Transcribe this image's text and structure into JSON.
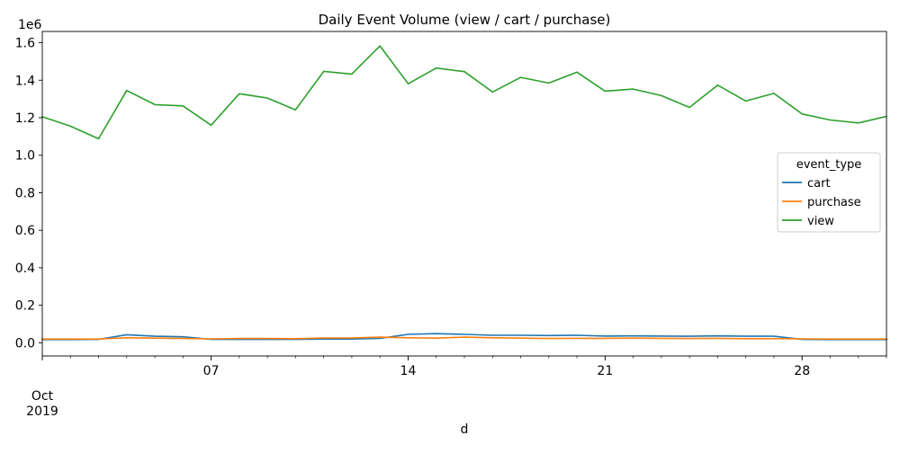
{
  "chart_data": {
    "type": "line",
    "title": "Daily Event Volume (view / cart / purchase)",
    "xlabel": "d",
    "ylabel": "",
    "y_offset_label": "1e6",
    "ylim": [
      -0.07,
      1.66
    ],
    "y_ticks": [
      0.0,
      0.2,
      0.4,
      0.6,
      0.8,
      1.0,
      1.2,
      1.4,
      1.6
    ],
    "y_tick_labels": [
      "0.0",
      "0.2",
      "0.4",
      "0.6",
      "0.8",
      "1.0",
      "1.2",
      "1.4",
      "1.6"
    ],
    "x": [
      "2019-10-01",
      "2019-10-02",
      "2019-10-03",
      "2019-10-04",
      "2019-10-05",
      "2019-10-06",
      "2019-10-07",
      "2019-10-08",
      "2019-10-09",
      "2019-10-10",
      "2019-10-11",
      "2019-10-12",
      "2019-10-13",
      "2019-10-14",
      "2019-10-15",
      "2019-10-16",
      "2019-10-17",
      "2019-10-18",
      "2019-10-19",
      "2019-10-20",
      "2019-10-21",
      "2019-10-22",
      "2019-10-23",
      "2019-10-24",
      "2019-10-25",
      "2019-10-26",
      "2019-10-27",
      "2019-10-28",
      "2019-10-29",
      "2019-10-30",
      "2019-10-31"
    ],
    "x_ticks": [
      {
        "date": "2019-10-01",
        "label": "",
        "major": true
      },
      {
        "date": "2019-10-07",
        "label": "07",
        "major": true
      },
      {
        "date": "2019-10-14",
        "label": "14",
        "major": true
      },
      {
        "date": "2019-10-21",
        "label": "21",
        "major": true
      },
      {
        "date": "2019-10-28",
        "label": "28",
        "major": true
      }
    ],
    "x_month_label": "Oct",
    "x_year_label": "2019",
    "grid": false,
    "legend": {
      "title": "event_type",
      "placement": "center-right"
    },
    "series": [
      {
        "name": "cart",
        "color": "#1f77b4",
        "values": [
          0.017,
          0.017,
          0.018,
          0.043,
          0.035,
          0.032,
          0.018,
          0.018,
          0.018,
          0.018,
          0.02,
          0.02,
          0.024,
          0.045,
          0.049,
          0.045,
          0.04,
          0.04,
          0.039,
          0.04,
          0.036,
          0.037,
          0.036,
          0.035,
          0.037,
          0.035,
          0.035,
          0.018,
          0.017,
          0.017,
          0.017
        ]
      },
      {
        "name": "purchase",
        "color": "#ff7f0e",
        "values": [
          0.02,
          0.02,
          0.02,
          0.027,
          0.025,
          0.023,
          0.021,
          0.023,
          0.023,
          0.022,
          0.026,
          0.026,
          0.03,
          0.027,
          0.025,
          0.03,
          0.027,
          0.025,
          0.023,
          0.024,
          0.024,
          0.025,
          0.024,
          0.023,
          0.024,
          0.022,
          0.022,
          0.021,
          0.02,
          0.02,
          0.02
        ]
      },
      {
        "name": "view",
        "color": "#2ca02c",
        "values": [
          1.205,
          1.155,
          1.088,
          1.345,
          1.27,
          1.263,
          1.16,
          1.328,
          1.305,
          1.242,
          1.447,
          1.433,
          1.583,
          1.381,
          1.465,
          1.446,
          1.337,
          1.415,
          1.385,
          1.443,
          1.342,
          1.353,
          1.318,
          1.255,
          1.374,
          1.289,
          1.33,
          1.22,
          1.188,
          1.172,
          1.207
        ]
      }
    ]
  }
}
